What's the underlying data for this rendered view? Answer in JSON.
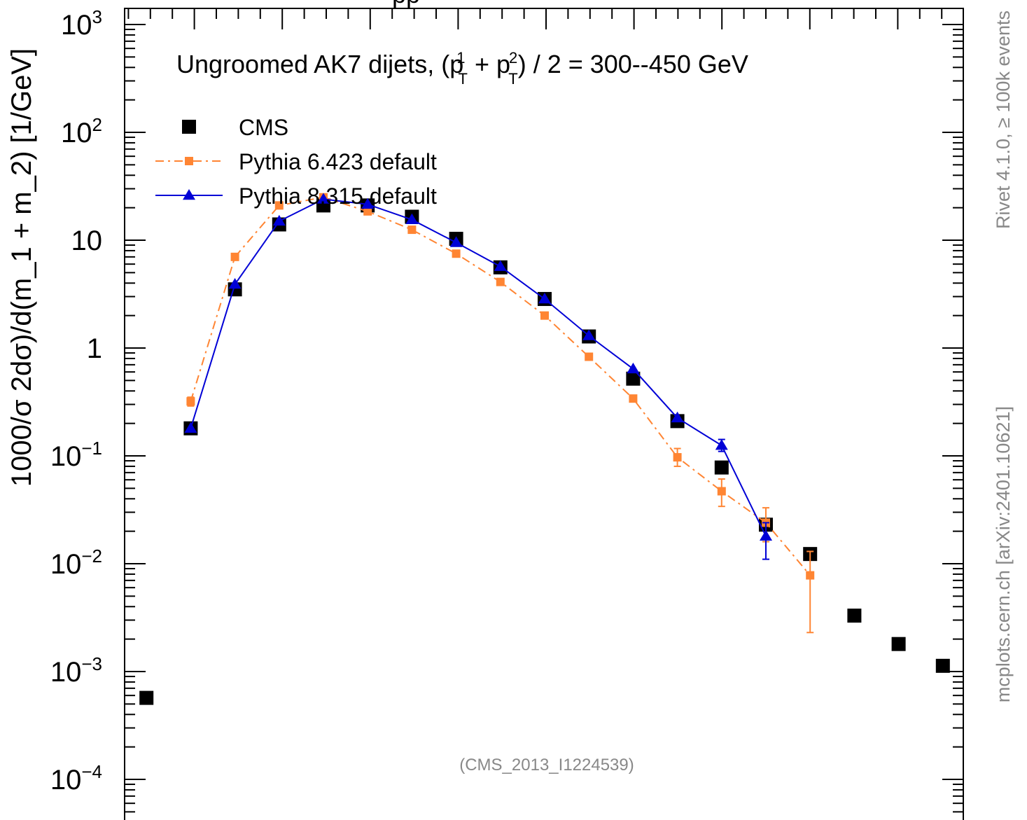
{
  "chart_data": {
    "type": "scatter",
    "title_parts": {
      "pre": "Ungroomed AK7 dijets, (p",
      "sup1": "1",
      "mid": " + p",
      "sup2": "2",
      "post": ") / 2 = 300--450 GeV",
      "sub": "T"
    },
    "top_cut_text": "pp",
    "ylabel": "1000/σ   2dσ)/d(m_1 + m_2) [1/GeV]",
    "analysis_label": "(CMS_2013_I1224539)",
    "side_label_top": "Rivet 4.1.0, ≥ 100k events",
    "side_label_bottom": "mcplots.cern.ch [arXiv:2401.10621]",
    "y_scale": "log",
    "ylim": [
      5e-05,
      1200
    ],
    "xlim": [
      0,
      19.5
    ],
    "x_tick_labels": [],
    "y_tick_labels": [
      {
        "value": 1000,
        "base": "10",
        "exp": "3"
      },
      {
        "value": 100,
        "base": "10",
        "exp": "2"
      },
      {
        "value": 10,
        "base": "10",
        "exp": ""
      },
      {
        "value": 1,
        "base": "1",
        "exp": ""
      },
      {
        "value": 0.1,
        "base": "10",
        "exp": "−1"
      },
      {
        "value": 0.01,
        "base": "10",
        "exp": "−2"
      },
      {
        "value": 0.001,
        "base": "10",
        "exp": "−3"
      },
      {
        "value": 0.0001,
        "base": "10",
        "exp": "−4"
      }
    ],
    "legend_position": "top-left",
    "series": [
      {
        "name": "CMS",
        "color": "#000000",
        "marker": "square",
        "line": "none",
        "points": [
          {
            "x": 1,
            "y": 0.00057
          },
          {
            "x": 2,
            "y": 0.18
          },
          {
            "x": 3,
            "y": 3.5
          },
          {
            "x": 4,
            "y": 14
          },
          {
            "x": 5,
            "y": 21
          },
          {
            "x": 6,
            "y": 21
          },
          {
            "x": 7,
            "y": 16.5
          },
          {
            "x": 8,
            "y": 10.3
          },
          {
            "x": 9,
            "y": 5.6
          },
          {
            "x": 10,
            "y": 2.85
          },
          {
            "x": 11,
            "y": 1.28
          },
          {
            "x": 12,
            "y": 0.52
          },
          {
            "x": 13,
            "y": 0.21
          },
          {
            "x": 14,
            "y": 0.078
          },
          {
            "x": 15,
            "y": 0.023
          },
          {
            "x": 16,
            "y": 0.0123
          },
          {
            "x": 17,
            "y": 0.0033
          },
          {
            "x": 18,
            "y": 0.0018
          },
          {
            "x": 19,
            "y": 0.00113
          }
        ]
      },
      {
        "name": "Pythia 6.423 default",
        "color": "#ff8533",
        "marker": "square",
        "line": "dash-dot",
        "points": [
          {
            "x": 2,
            "y": 0.32,
            "lo": 0.29,
            "hi": 0.35
          },
          {
            "x": 3,
            "y": 7.0
          },
          {
            "x": 4,
            "y": 21
          },
          {
            "x": 5,
            "y": 25
          },
          {
            "x": 6,
            "y": 18.5
          },
          {
            "x": 7,
            "y": 12.5
          },
          {
            "x": 8,
            "y": 7.5
          },
          {
            "x": 9,
            "y": 4.1
          },
          {
            "x": 10,
            "y": 2.0
          },
          {
            "x": 11,
            "y": 0.83
          },
          {
            "x": 12,
            "y": 0.34,
            "lo": 0.32,
            "hi": 0.36
          },
          {
            "x": 13,
            "y": 0.097,
            "lo": 0.08,
            "hi": 0.117
          },
          {
            "x": 14,
            "y": 0.047,
            "lo": 0.034,
            "hi": 0.061
          },
          {
            "x": 15,
            "y": 0.024,
            "lo": 0.016,
            "hi": 0.033
          },
          {
            "x": 16,
            "y": 0.0078,
            "lo": 0.0023,
            "hi": 0.013
          }
        ]
      },
      {
        "name": "Pythia 8.315 default",
        "color": "#0000d6",
        "marker": "triangle",
        "line": "solid",
        "points": [
          {
            "x": 2,
            "y": 0.18
          },
          {
            "x": 3,
            "y": 3.9
          },
          {
            "x": 4,
            "y": 15
          },
          {
            "x": 5,
            "y": 24
          },
          {
            "x": 6,
            "y": 21.5
          },
          {
            "x": 7,
            "y": 15.5
          },
          {
            "x": 8,
            "y": 9.5
          },
          {
            "x": 9,
            "y": 5.7
          },
          {
            "x": 10,
            "y": 2.85
          },
          {
            "x": 11,
            "y": 1.3
          },
          {
            "x": 12,
            "y": 0.64
          },
          {
            "x": 13,
            "y": 0.225
          },
          {
            "x": 14,
            "y": 0.125,
            "lo": 0.11,
            "hi": 0.142
          },
          {
            "x": 15,
            "y": 0.018,
            "lo": 0.011,
            "hi": 0.024
          }
        ]
      }
    ]
  }
}
